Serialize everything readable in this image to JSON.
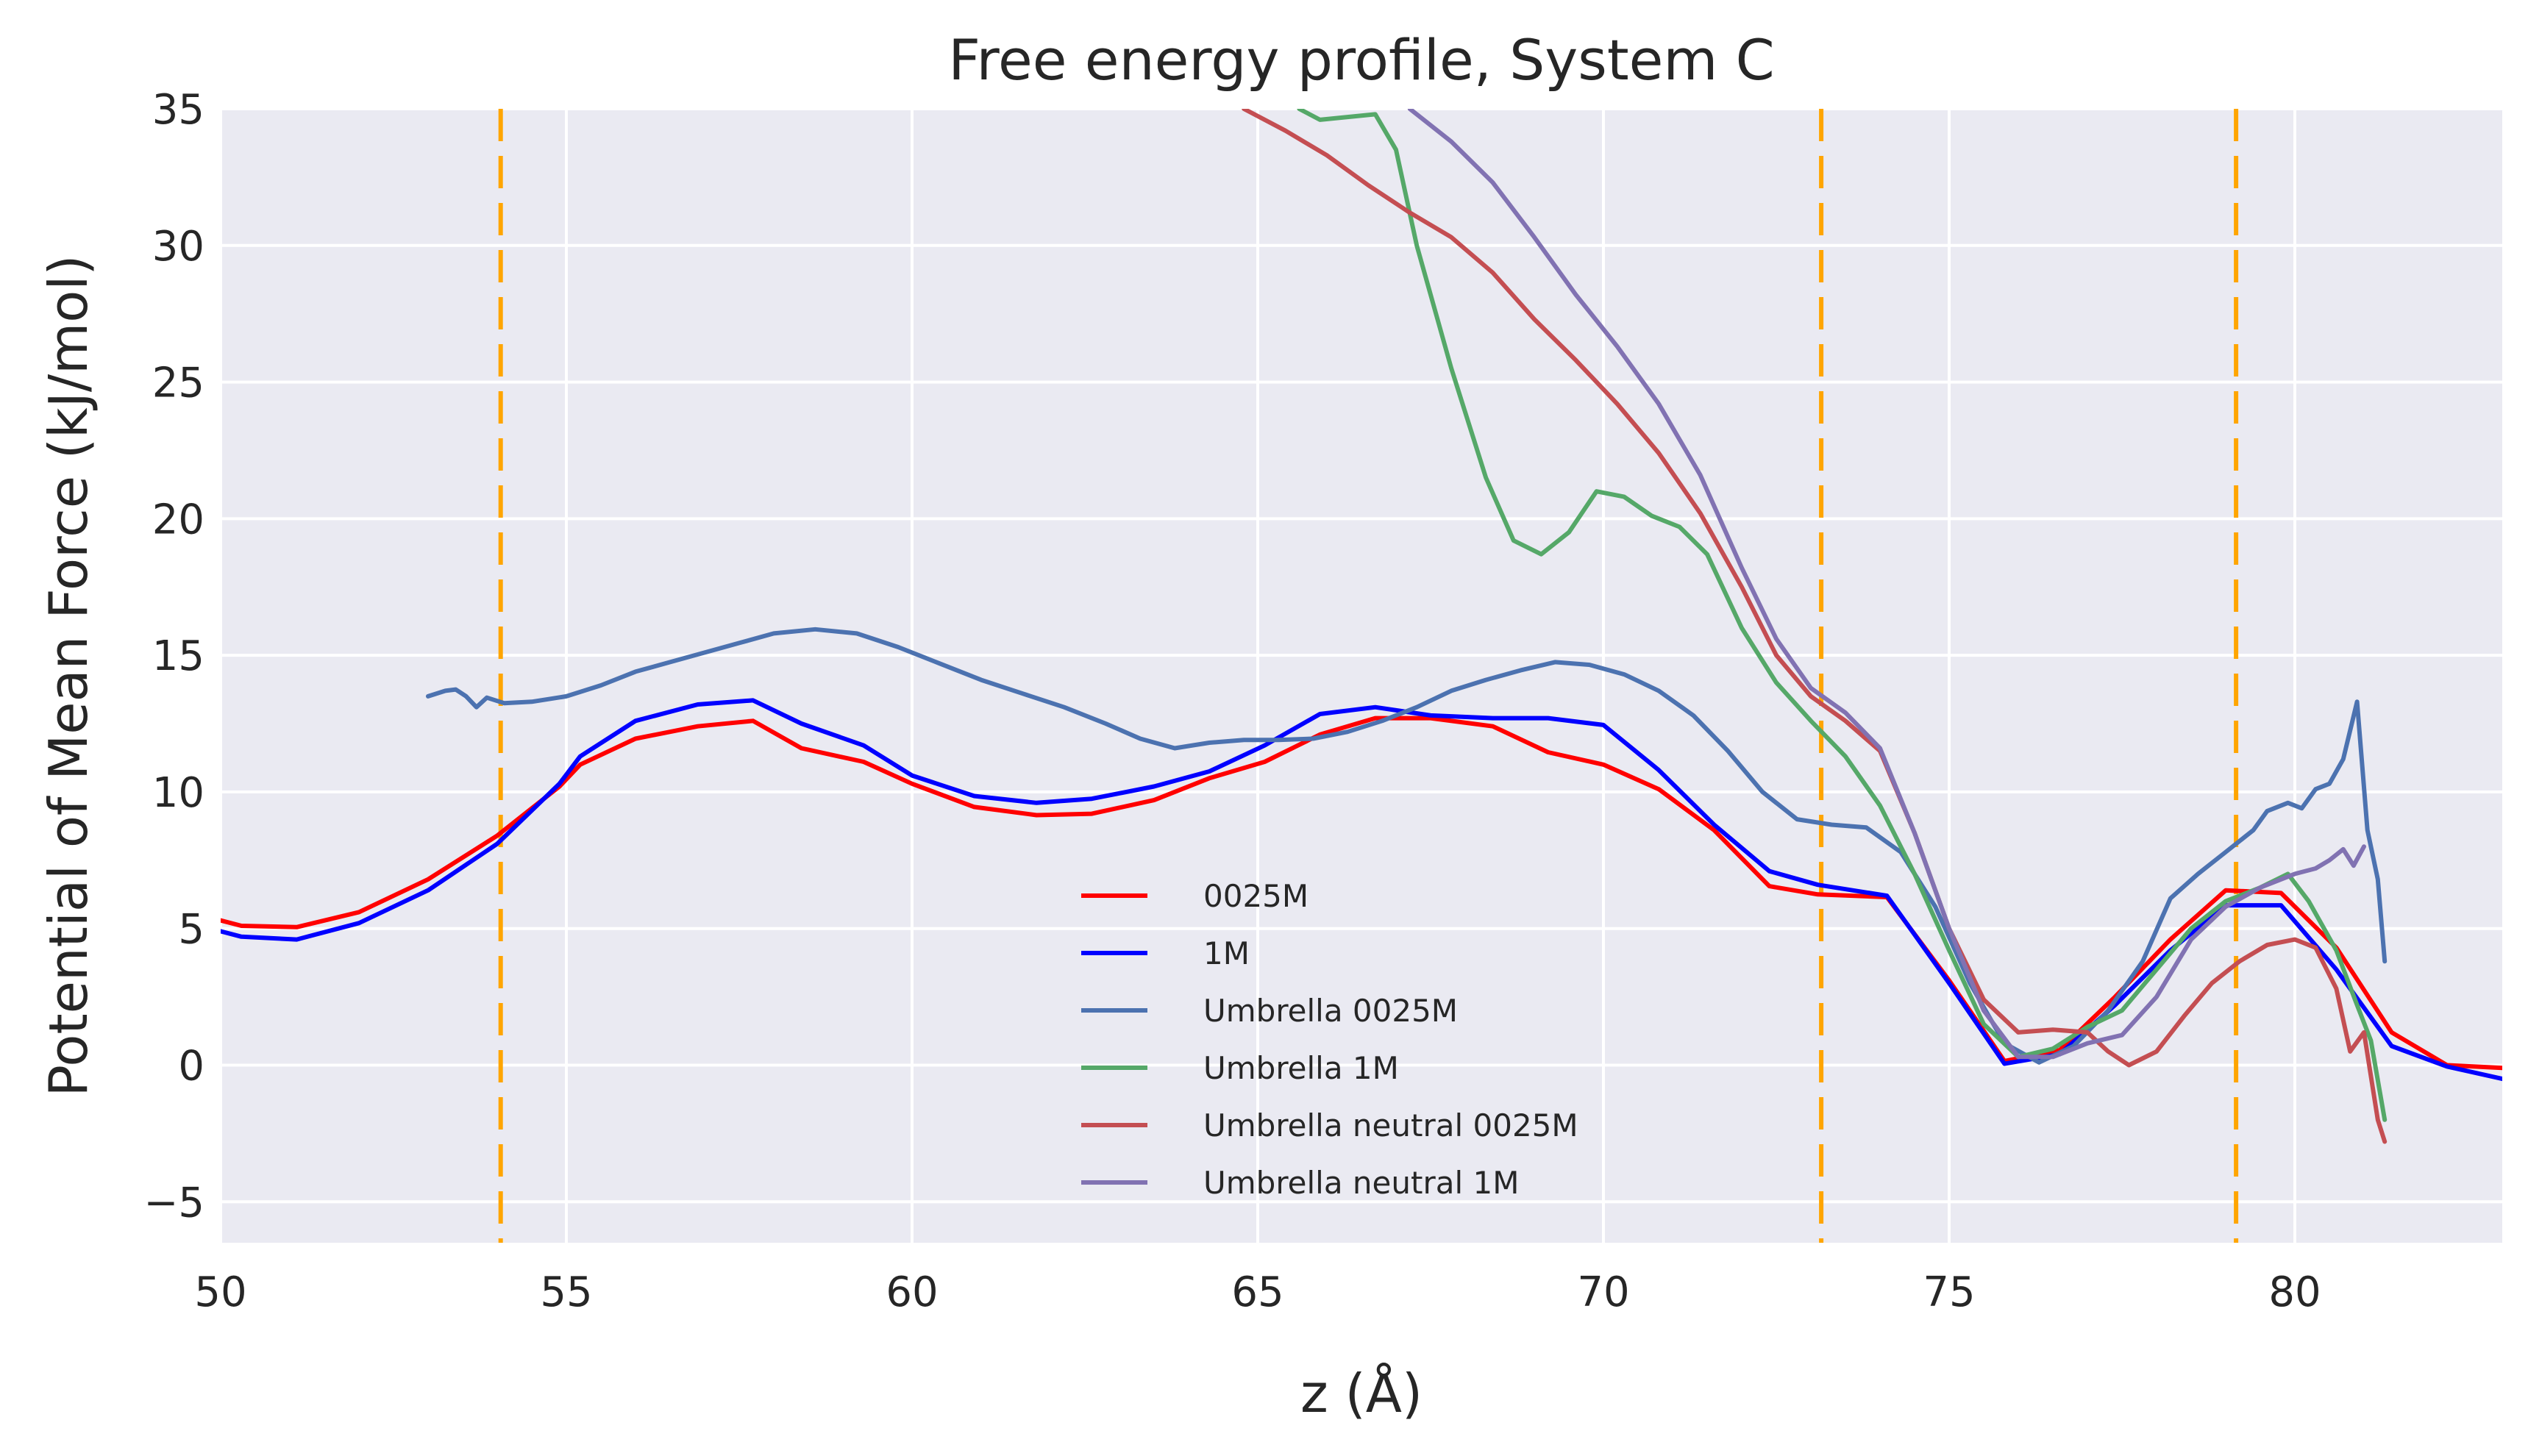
{
  "chart_data": {
    "type": "line",
    "title": "Free energy profile, System C",
    "xlabel": "z (Å)",
    "ylabel": "Potential of Mean Force (kJ/mol)",
    "xlim": [
      50,
      83
    ],
    "ylim": [
      -6.5,
      35
    ],
    "xticks": [
      50,
      55,
      60,
      65,
      70,
      75,
      80
    ],
    "yticks": [
      -5,
      0,
      5,
      10,
      15,
      20,
      25,
      30,
      35
    ],
    "ytick_labels": [
      "−5",
      "0",
      "5",
      "10",
      "15",
      "20",
      "25",
      "30",
      "35"
    ],
    "grid": true,
    "legend_position": "lower-center",
    "vlines": {
      "x": [
        54.05,
        73.15,
        79.15
      ],
      "color": "#FFA500",
      "style": "dashed"
    },
    "series": [
      {
        "name": "0025M",
        "color": "#FF0000",
        "points": [
          [
            50,
            5.3
          ],
          [
            50.3,
            5.1
          ],
          [
            51.1,
            5.05
          ],
          [
            52.0,
            5.6
          ],
          [
            53.0,
            6.8
          ],
          [
            54.0,
            8.4
          ],
          [
            54.9,
            10.2
          ],
          [
            55.2,
            11.0
          ],
          [
            56.0,
            11.95
          ],
          [
            56.9,
            12.4
          ],
          [
            57.7,
            12.6
          ],
          [
            58.4,
            11.6
          ],
          [
            59.3,
            11.1
          ],
          [
            60.0,
            10.3
          ],
          [
            60.9,
            9.45
          ],
          [
            61.8,
            9.15
          ],
          [
            62.6,
            9.2
          ],
          [
            63.5,
            9.7
          ],
          [
            64.3,
            10.5
          ],
          [
            65.1,
            11.1
          ],
          [
            65.9,
            12.1
          ],
          [
            66.7,
            12.7
          ],
          [
            67.5,
            12.7
          ],
          [
            68.4,
            12.4
          ],
          [
            69.2,
            11.45
          ],
          [
            70.0,
            11.0
          ],
          [
            70.8,
            10.1
          ],
          [
            71.6,
            8.6
          ],
          [
            72.4,
            6.55
          ],
          [
            73.1,
            6.25
          ],
          [
            74.1,
            6.15
          ],
          [
            75.0,
            3.1
          ],
          [
            75.8,
            0.15
          ],
          [
            76.6,
            0.55
          ],
          [
            77.4,
            2.5
          ],
          [
            78.2,
            4.6
          ],
          [
            79.0,
            6.4
          ],
          [
            79.8,
            6.3
          ],
          [
            80.6,
            4.3
          ],
          [
            81.4,
            1.2
          ],
          [
            82.2,
            0.0
          ],
          [
            83.0,
            -0.1
          ]
        ]
      },
      {
        "name": "1M",
        "color": "#0000FF",
        "points": [
          [
            50,
            4.9
          ],
          [
            50.3,
            4.7
          ],
          [
            51.1,
            4.6
          ],
          [
            52.0,
            5.2
          ],
          [
            53.0,
            6.4
          ],
          [
            54.0,
            8.1
          ],
          [
            54.9,
            10.3
          ],
          [
            55.2,
            11.3
          ],
          [
            56.0,
            12.6
          ],
          [
            56.9,
            13.2
          ],
          [
            57.7,
            13.35
          ],
          [
            58.4,
            12.5
          ],
          [
            59.3,
            11.7
          ],
          [
            60.0,
            10.6
          ],
          [
            60.9,
            9.85
          ],
          [
            61.8,
            9.6
          ],
          [
            62.6,
            9.75
          ],
          [
            63.5,
            10.2
          ],
          [
            64.3,
            10.75
          ],
          [
            65.1,
            11.7
          ],
          [
            65.9,
            12.85
          ],
          [
            66.7,
            13.1
          ],
          [
            67.5,
            12.8
          ],
          [
            68.4,
            12.7
          ],
          [
            69.2,
            12.7
          ],
          [
            70.0,
            12.45
          ],
          [
            70.8,
            10.8
          ],
          [
            71.6,
            8.8
          ],
          [
            72.4,
            7.1
          ],
          [
            73.1,
            6.6
          ],
          [
            74.1,
            6.2
          ],
          [
            75.0,
            3.0
          ],
          [
            75.8,
            0.05
          ],
          [
            76.6,
            0.4
          ],
          [
            77.4,
            2.2
          ],
          [
            78.2,
            4.2
          ],
          [
            79.0,
            5.85
          ],
          [
            79.8,
            5.85
          ],
          [
            80.6,
            3.5
          ],
          [
            81.4,
            0.7
          ],
          [
            82.2,
            -0.05
          ],
          [
            83.0,
            -0.5
          ]
        ]
      },
      {
        "name": "Umbrella  0025M",
        "color": "#4C72B0",
        "points": [
          [
            53.0,
            13.5
          ],
          [
            53.25,
            13.7
          ],
          [
            53.4,
            13.75
          ],
          [
            53.55,
            13.5
          ],
          [
            53.7,
            13.1
          ],
          [
            53.85,
            13.45
          ],
          [
            54.1,
            13.25
          ],
          [
            54.5,
            13.3
          ],
          [
            55.0,
            13.5
          ],
          [
            55.5,
            13.9
          ],
          [
            56.0,
            14.4
          ],
          [
            56.5,
            14.75
          ],
          [
            57.0,
            15.1
          ],
          [
            57.5,
            15.45
          ],
          [
            58.0,
            15.8
          ],
          [
            58.6,
            15.95
          ],
          [
            59.2,
            15.8
          ],
          [
            59.8,
            15.3
          ],
          [
            60.4,
            14.7
          ],
          [
            61.0,
            14.1
          ],
          [
            61.6,
            13.6
          ],
          [
            62.2,
            13.1
          ],
          [
            62.8,
            12.5
          ],
          [
            63.3,
            11.95
          ],
          [
            63.8,
            11.6
          ],
          [
            64.3,
            11.8
          ],
          [
            64.8,
            11.9
          ],
          [
            65.3,
            11.9
          ],
          [
            65.8,
            11.95
          ],
          [
            66.3,
            12.2
          ],
          [
            66.8,
            12.6
          ],
          [
            67.3,
            13.1
          ],
          [
            67.8,
            13.7
          ],
          [
            68.3,
            14.1
          ],
          [
            68.8,
            14.45
          ],
          [
            69.3,
            14.75
          ],
          [
            69.8,
            14.65
          ],
          [
            70.3,
            14.3
          ],
          [
            70.8,
            13.7
          ],
          [
            71.3,
            12.8
          ],
          [
            71.8,
            11.5
          ],
          [
            72.3,
            10.0
          ],
          [
            72.8,
            9.0
          ],
          [
            73.3,
            8.8
          ],
          [
            73.8,
            8.7
          ],
          [
            74.3,
            7.8
          ],
          [
            74.8,
            5.8
          ],
          [
            75.3,
            3.0
          ],
          [
            75.8,
            0.8
          ],
          [
            76.3,
            0.1
          ],
          [
            76.8,
            0.7
          ],
          [
            77.3,
            2.0
          ],
          [
            77.8,
            3.8
          ],
          [
            78.2,
            6.1
          ],
          [
            78.6,
            7.0
          ],
          [
            79.0,
            7.8
          ],
          [
            79.4,
            8.6
          ],
          [
            79.6,
            9.3
          ],
          [
            79.9,
            9.6
          ],
          [
            80.1,
            9.4
          ],
          [
            80.3,
            10.1
          ],
          [
            80.5,
            10.3
          ],
          [
            80.7,
            11.2
          ],
          [
            80.9,
            13.3
          ],
          [
            81.05,
            8.6
          ],
          [
            81.2,
            6.8
          ],
          [
            81.3,
            3.8
          ]
        ]
      },
      {
        "name": "Umbrella  1M",
        "color": "#55A868",
        "points": [
          [
            65.6,
            35.0
          ],
          [
            65.9,
            34.6
          ],
          [
            66.3,
            34.7
          ],
          [
            66.7,
            34.8
          ],
          [
            67.0,
            33.5
          ],
          [
            67.3,
            30.0
          ],
          [
            67.8,
            25.5
          ],
          [
            68.3,
            21.5
          ],
          [
            68.7,
            19.2
          ],
          [
            69.1,
            18.7
          ],
          [
            69.5,
            19.5
          ],
          [
            69.9,
            21.0
          ],
          [
            70.3,
            20.8
          ],
          [
            70.7,
            20.1
          ],
          [
            71.1,
            19.7
          ],
          [
            71.5,
            18.7
          ],
          [
            72.0,
            16.0
          ],
          [
            72.5,
            14.0
          ],
          [
            73.0,
            12.6
          ],
          [
            73.5,
            11.3
          ],
          [
            74.0,
            9.5
          ],
          [
            74.5,
            7.0
          ],
          [
            75.0,
            4.2
          ],
          [
            75.5,
            1.5
          ],
          [
            76.0,
            0.3
          ],
          [
            76.5,
            0.6
          ],
          [
            77.0,
            1.4
          ],
          [
            77.5,
            2.0
          ],
          [
            78.0,
            3.5
          ],
          [
            78.5,
            5.0
          ],
          [
            79.0,
            6.0
          ],
          [
            79.5,
            6.5
          ],
          [
            79.9,
            7.0
          ],
          [
            80.2,
            6.0
          ],
          [
            80.6,
            4.2
          ],
          [
            80.9,
            2.2
          ],
          [
            81.1,
            0.9
          ],
          [
            81.3,
            -2.0
          ]
        ]
      },
      {
        "name": "Umbrella neutral 0025M",
        "color": "#C44E52",
        "points": [
          [
            64.8,
            35.0
          ],
          [
            65.4,
            34.2
          ],
          [
            66.0,
            33.3
          ],
          [
            66.6,
            32.2
          ],
          [
            67.2,
            31.2
          ],
          [
            67.8,
            30.3
          ],
          [
            68.4,
            29.0
          ],
          [
            69.0,
            27.3
          ],
          [
            69.6,
            25.8
          ],
          [
            70.2,
            24.2
          ],
          [
            70.8,
            22.4
          ],
          [
            71.4,
            20.2
          ],
          [
            72.0,
            17.5
          ],
          [
            72.5,
            15.0
          ],
          [
            73.0,
            13.5
          ],
          [
            73.5,
            12.6
          ],
          [
            74.0,
            11.5
          ],
          [
            74.5,
            8.5
          ],
          [
            75.0,
            5.0
          ],
          [
            75.5,
            2.4
          ],
          [
            76.0,
            1.2
          ],
          [
            76.5,
            1.3
          ],
          [
            77.0,
            1.2
          ],
          [
            77.3,
            0.5
          ],
          [
            77.6,
            0.0
          ],
          [
            78.0,
            0.5
          ],
          [
            78.4,
            1.8
          ],
          [
            78.8,
            3.0
          ],
          [
            79.2,
            3.8
          ],
          [
            79.6,
            4.4
          ],
          [
            80.0,
            4.6
          ],
          [
            80.3,
            4.3
          ],
          [
            80.6,
            2.8
          ],
          [
            80.8,
            0.5
          ],
          [
            81.0,
            1.2
          ],
          [
            81.2,
            -2.0
          ],
          [
            81.3,
            -2.8
          ]
        ]
      },
      {
        "name": "Umbrella neutral 1M",
        "color": "#8172B2",
        "points": [
          [
            67.2,
            35.0
          ],
          [
            67.8,
            33.8
          ],
          [
            68.4,
            32.3
          ],
          [
            69.0,
            30.3
          ],
          [
            69.6,
            28.2
          ],
          [
            70.2,
            26.3
          ],
          [
            70.8,
            24.2
          ],
          [
            71.4,
            21.6
          ],
          [
            72.0,
            18.2
          ],
          [
            72.5,
            15.6
          ],
          [
            73.0,
            13.8
          ],
          [
            73.5,
            12.9
          ],
          [
            74.0,
            11.6
          ],
          [
            74.5,
            8.5
          ],
          [
            75.0,
            5.0
          ],
          [
            75.5,
            2.0
          ],
          [
            76.0,
            0.3
          ],
          [
            76.5,
            0.3
          ],
          [
            77.0,
            0.8
          ],
          [
            77.5,
            1.1
          ],
          [
            78.0,
            2.5
          ],
          [
            78.5,
            4.6
          ],
          [
            79.0,
            5.8
          ],
          [
            79.5,
            6.5
          ],
          [
            80.0,
            7.0
          ],
          [
            80.3,
            7.2
          ],
          [
            80.5,
            7.5
          ],
          [
            80.7,
            7.9
          ],
          [
            80.85,
            7.3
          ],
          [
            81.0,
            8.0
          ]
        ]
      }
    ]
  }
}
